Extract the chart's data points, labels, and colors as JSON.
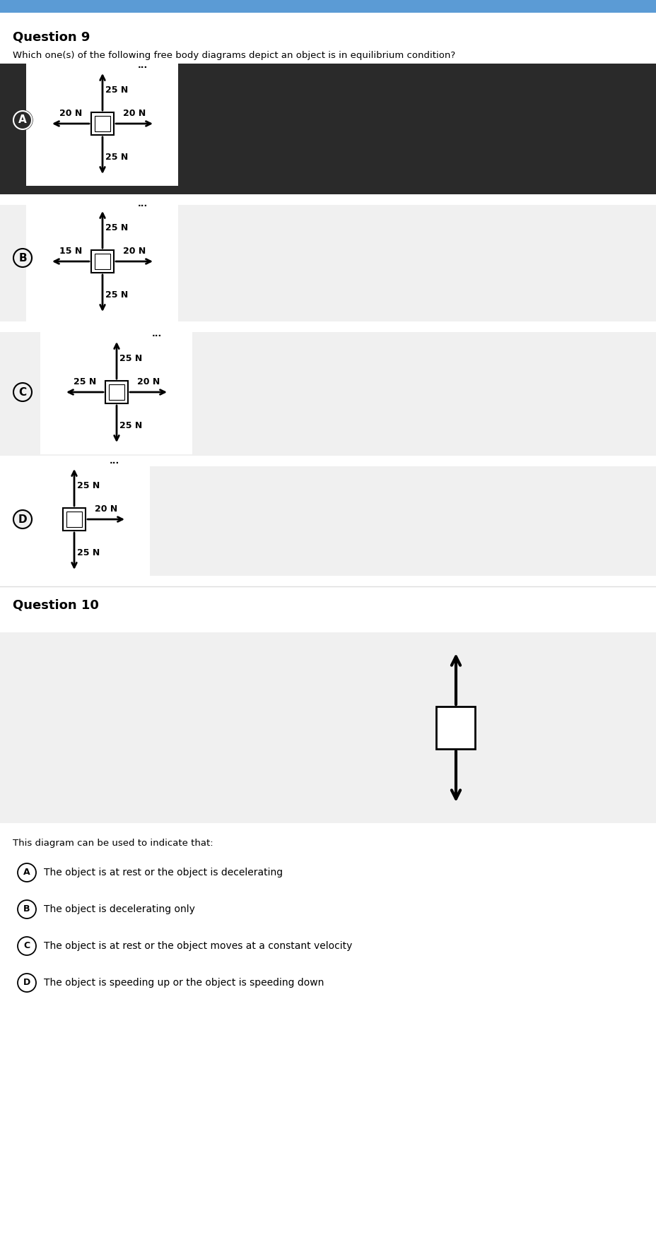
{
  "title_q9": "Question 9",
  "question_q9": "Which one(s) of the following free body diagrams depict an object is in equilibrium condition?",
  "title_q10": "Question 10",
  "q10_diagram_text": "This diagram can be used to indicate that:",
  "diagrams": [
    {
      "label": "A",
      "panel_bg": "#2a2a2a",
      "label_color": "white",
      "forces": {
        "up": "25 N",
        "down": "25 N",
        "left": "20 N",
        "right": "20 N"
      }
    },
    {
      "label": "B",
      "panel_bg": "#f0f0f0",
      "label_color": "black",
      "forces": {
        "up": "25 N",
        "down": "25 N",
        "left": "15 N",
        "right": "20 N"
      }
    },
    {
      "label": "C",
      "panel_bg": "#f0f0f0",
      "label_color": "black",
      "forces": {
        "up": "25 N",
        "down": "25 N",
        "left": "25 N",
        "right": "20 N"
      }
    },
    {
      "label": "D",
      "panel_bg": "#f0f0f0",
      "label_color": "black",
      "forces": {
        "up": "25 N",
        "down": "25 N",
        "left": "",
        "right": "20 N"
      }
    }
  ],
  "q10_options": [
    [
      "A",
      "The object is at rest or the object is decelerating"
    ],
    [
      "B",
      "The object is decelerating only"
    ],
    [
      "C",
      "The object is at rest or the object moves at a constant velocity"
    ],
    [
      "D",
      "The object is speeding up or the object is speeding down"
    ]
  ],
  "header_color": "#5b9bd5",
  "bg_color": "#ffffff",
  "separator_color": "#dddddd"
}
